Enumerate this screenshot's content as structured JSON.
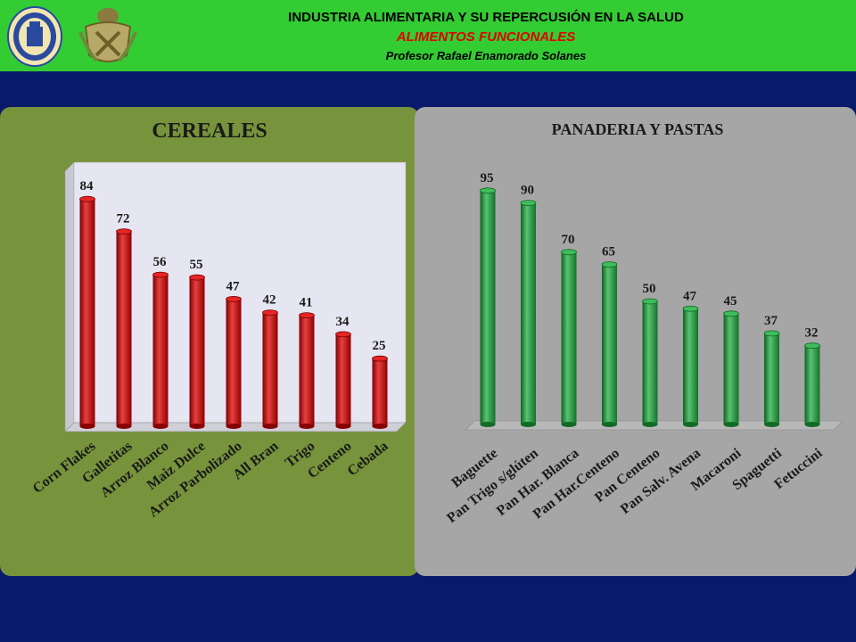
{
  "header": {
    "line1": "INDUSTRIA ALIMENTARIA Y SU REPERCUSIÓN EN LA SALUD",
    "line2": "ALIMENTOS FUNCIONALES",
    "line3": "Profesor Rafael Enamorado Solanes"
  },
  "chart_data": [
    {
      "type": "bar",
      "title": "CEREALES",
      "categories": [
        "Corn Flakes",
        "Galletitas",
        "Arroz Blanco",
        "Maiz Dulce",
        "Arroz Parbolizado",
        "All Bran",
        "Trigo",
        "Centeno",
        "Cebada"
      ],
      "values": [
        84,
        72,
        56,
        55,
        47,
        42,
        41,
        34,
        25
      ],
      "color": "#e00000",
      "ylim": [
        0,
        90
      ],
      "grid": false
    },
    {
      "type": "bar",
      "title": "PANADERIA Y PASTAS",
      "categories": [
        "Baguette",
        "Pan Trigo s/glúten",
        "Pan Har. Blanca",
        "Pan Har.Centeno",
        "Pan Centeno",
        "Pan Salv. Avena",
        "Macaroni",
        "Spaguetti",
        "Fetuccini"
      ],
      "values": [
        95,
        90,
        70,
        65,
        50,
        47,
        45,
        37,
        32
      ],
      "color": "#1fb040",
      "ylim": [
        0,
        100
      ],
      "grid": false
    }
  ]
}
